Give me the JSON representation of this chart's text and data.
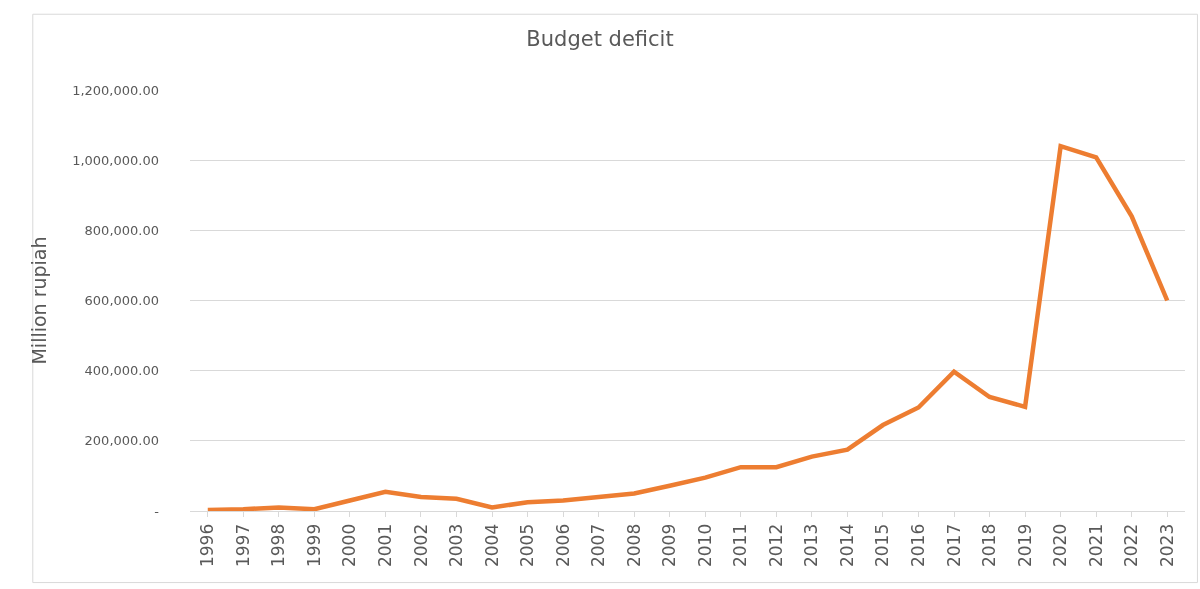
{
  "chart_data": {
    "type": "line",
    "title": "Budget deficit",
    "ylabel": "Million rupiah",
    "categories": [
      "1996",
      "1997",
      "1998",
      "1999",
      "2000",
      "2001",
      "2002",
      "2003",
      "2004",
      "2005",
      "2006",
      "2007",
      "2008",
      "2009",
      "2010",
      "2011",
      "2012",
      "2013",
      "2014",
      "2015",
      "2016",
      "2017",
      "2018",
      "2019",
      "2020",
      "2021",
      "2022",
      "2023"
    ],
    "series": [
      {
        "color": "#ed7d31",
        "values": [
          3000,
          5000,
          10000,
          5000,
          30000,
          55000,
          40000,
          35000,
          10000,
          25000,
          30000,
          40000,
          50000,
          72000,
          95000,
          125000,
          125000,
          155000,
          175000,
          245000,
          295000,
          397000,
          325000,
          297000,
          1040000,
          1008000,
          840000,
          600000
        ]
      }
    ],
    "ylim": [
      0,
      1200000
    ],
    "yticks": [
      {
        "value": 0,
        "label": "-"
      },
      {
        "value": 200000,
        "label": "200,000.00"
      },
      {
        "value": 400000,
        "label": "400,000.00"
      },
      {
        "value": 600000,
        "label": "600,000.00"
      },
      {
        "value": 800000,
        "label": "800,000.00"
      },
      {
        "value": 1000000,
        "label": "1,000,000.00"
      },
      {
        "value": 1200000,
        "label": "1,200,000.00"
      }
    ],
    "grid": "y",
    "legend": false,
    "marker": "none",
    "line_style": "solid"
  }
}
